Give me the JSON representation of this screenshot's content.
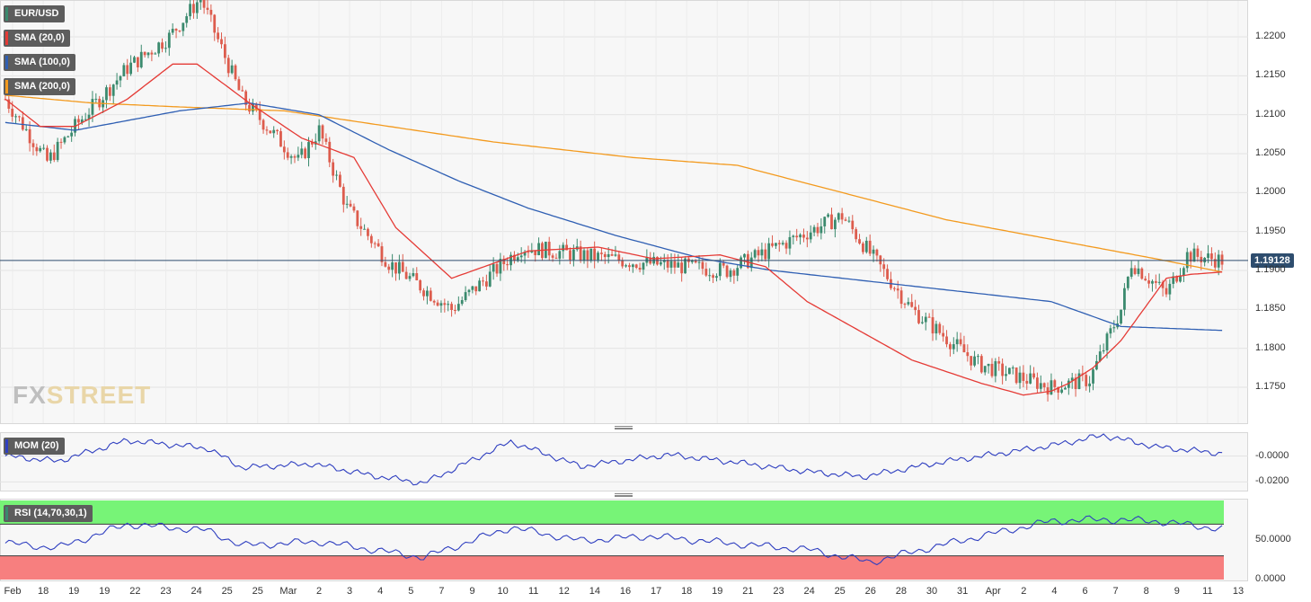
{
  "chart_data": {
    "type": "candlestick",
    "symbol": "EUR/USD",
    "last_price": "1.19128",
    "price_axis": {
      "ticks": [
        "1.2200",
        "1.2150",
        "1.2100",
        "1.2050",
        "1.2000",
        "1.1950",
        "1.1900",
        "1.1850",
        "1.1800",
        "1.1750"
      ],
      "ylim": [
        1.1705,
        1.2245
      ]
    },
    "x_labels": [
      "Feb",
      "18",
      "19",
      "19",
      "22",
      "23",
      "24",
      "25",
      "25",
      "Mar",
      "2",
      "3",
      "4",
      "5",
      "7",
      "9",
      "10",
      "11",
      "12",
      "14",
      "16",
      "17",
      "18",
      "19",
      "21",
      "23",
      "24",
      "25",
      "26",
      "28",
      "30",
      "31",
      "Apr",
      "2",
      "4",
      "6",
      "7",
      "8",
      "9",
      "11",
      "13"
    ],
    "close_anchors": {
      "x": [
        0,
        12,
        21,
        35,
        47,
        56,
        68,
        84,
        90,
        98,
        110,
        128,
        148,
        182,
        207,
        240,
        260,
        279,
        300,
        311,
        320,
        323,
        333,
        339,
        349
      ],
      "y": [
        1.212,
        1.204,
        1.209,
        1.216,
        1.22,
        1.225,
        1.212,
        1.204,
        1.208,
        1.198,
        1.191,
        1.185,
        1.193,
        1.191,
        1.19,
        1.197,
        1.185,
        1.178,
        1.175,
        1.176,
        1.185,
        1.191,
        1.187,
        1.192,
        1.1913
      ]
    },
    "sma20": {
      "name": "SMA (20,0)",
      "color": "#e53b36",
      "x": [
        0,
        10,
        20,
        35,
        48,
        55,
        70,
        85,
        100,
        112,
        128,
        150,
        170,
        186,
        205,
        218,
        230,
        260,
        280,
        292,
        300,
        305,
        312,
        320,
        333,
        340,
        349
      ],
      "y": [
        1.212,
        1.2085,
        1.2085,
        1.212,
        1.2165,
        1.2165,
        1.2115,
        1.207,
        1.2045,
        1.1955,
        1.189,
        1.1925,
        1.193,
        1.1915,
        1.192,
        1.1905,
        1.186,
        1.1785,
        1.1755,
        1.174,
        1.1745,
        1.1755,
        1.1775,
        1.181,
        1.189,
        1.1895,
        1.1898
      ]
    },
    "sma100": {
      "name": "SMA (100,0)",
      "color": "#2f5fb3",
      "x": [
        0,
        20,
        50,
        70,
        90,
        110,
        130,
        150,
        175,
        200,
        220,
        240,
        260,
        280,
        300,
        320,
        349
      ],
      "y": [
        1.209,
        1.208,
        1.2105,
        1.2115,
        1.21,
        1.2055,
        1.2015,
        1.198,
        1.1945,
        1.1915,
        1.19,
        1.189,
        1.188,
        1.187,
        1.186,
        1.1828,
        1.1823
      ]
    },
    "sma200": {
      "name": "SMA (200,0)",
      "color": "#f39a1e",
      "x": [
        0,
        25,
        50,
        80,
        110,
        140,
        180,
        210,
        240,
        270,
        300,
        330,
        349
      ],
      "y": [
        1.2125,
        1.2115,
        1.211,
        1.2105,
        1.2085,
        1.2065,
        1.2045,
        1.2035,
        1.2,
        1.1965,
        1.194,
        1.1915,
        1.1898
      ]
    },
    "mom": {
      "name": "MOM (20)",
      "ticks": [
        "-0.0000",
        "-0.0200"
      ],
      "ylim": [
        -0.026,
        0.017
      ],
      "x": [
        0,
        15,
        35,
        58,
        68,
        88,
        105,
        120,
        145,
        165,
        190,
        210,
        230,
        246,
        268,
        300,
        315,
        330,
        349
      ],
      "y": [
        0.0,
        -0.004,
        0.012,
        0.006,
        -0.009,
        -0.006,
        -0.015,
        -0.021,
        0.011,
        -0.008,
        0.001,
        -0.005,
        -0.012,
        -0.016,
        -0.005,
        0.008,
        0.016,
        0.007,
        0.002
      ]
    },
    "rsi": {
      "name": "RSI (14,70,30,1)",
      "ticks": [
        "50.0000",
        "0.0000"
      ],
      "ylim": [
        0,
        100
      ],
      "upper": 70,
      "lower": 30,
      "x": [
        0,
        15,
        35,
        58,
        68,
        90,
        105,
        120,
        145,
        165,
        185,
        210,
        230,
        248,
        265,
        280,
        300,
        315,
        330,
        349
      ],
      "y": [
        46,
        40,
        70,
        62,
        43,
        48,
        38,
        28,
        66,
        49,
        55,
        45,
        38,
        22,
        40,
        55,
        74,
        76,
        74,
        64
      ]
    },
    "colors": {
      "up": "#3b8a6e",
      "down": "#dd5c4d",
      "price_line": "#2e4d6e"
    }
  },
  "watermark": {
    "part1": "FX",
    "part2": "STREET"
  }
}
